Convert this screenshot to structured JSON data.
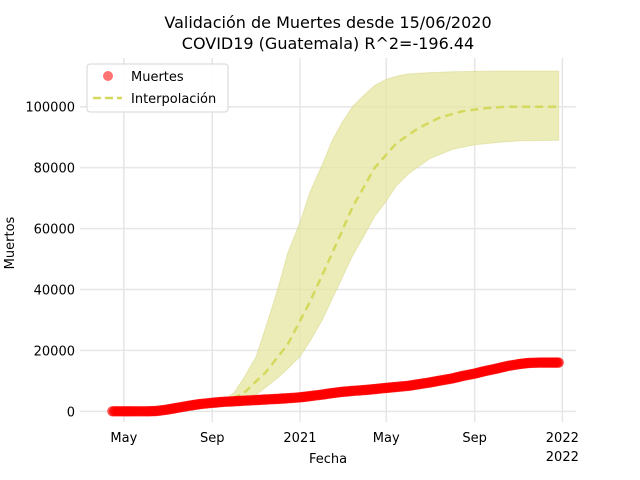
{
  "chart_data": {
    "type": "line",
    "title": "Validación de Muertes desde 15/06/2020",
    "subtitle": "COVID19 (Guatemala) R^2=-196.44",
    "xlabel": "Fecha",
    "ylabel": "Muertos",
    "x_range": [
      "2020-03-01",
      "2022-01-20"
    ],
    "ylim": [
      -3500,
      116000
    ],
    "x_ticks": [
      {
        "date": "2020-05-01",
        "label": "May",
        "label2": ""
      },
      {
        "date": "2020-09-01",
        "label": "Sep",
        "label2": ""
      },
      {
        "date": "2021-01-01",
        "label": "2021",
        "label2": ""
      },
      {
        "date": "2021-05-01",
        "label": "May",
        "label2": ""
      },
      {
        "date": "2021-09-01",
        "label": "Sep",
        "label2": ""
      },
      {
        "date": "2022-01-01",
        "label": "2022",
        "label2": "2022"
      }
    ],
    "y_ticks": [
      0,
      20000,
      40000,
      60000,
      80000,
      100000
    ],
    "y_tick_labels": [
      "0",
      "20000",
      "40000",
      "60000",
      "80000",
      "100000"
    ],
    "grid": true,
    "legend_position": "upper-left",
    "legend": [
      "Muertes",
      "Interpolación"
    ],
    "colors": {
      "observed": "#ff0000",
      "fit": "#d4d95e",
      "band_fill": "#e6e6a0",
      "band_edge": "#c8c864",
      "grid": "#e6e6e6"
    },
    "series": [
      {
        "name": "Muertes",
        "style": "scatter",
        "points": [
          [
            "2020-04-15",
            0
          ],
          [
            "2020-05-01",
            0
          ],
          [
            "2020-05-15",
            0
          ],
          [
            "2020-06-01",
            0
          ],
          [
            "2020-06-15",
            100
          ],
          [
            "2020-07-01",
            600
          ],
          [
            "2020-07-15",
            1200
          ],
          [
            "2020-08-01",
            1900
          ],
          [
            "2020-08-15",
            2400
          ],
          [
            "2020-09-01",
            2800
          ],
          [
            "2020-09-15",
            3100
          ],
          [
            "2020-10-01",
            3300
          ],
          [
            "2020-10-15",
            3500
          ],
          [
            "2020-11-01",
            3700
          ],
          [
            "2020-11-15",
            3900
          ],
          [
            "2020-12-01",
            4100
          ],
          [
            "2020-12-15",
            4300
          ],
          [
            "2021-01-01",
            4600
          ],
          [
            "2021-01-15",
            5000
          ],
          [
            "2021-02-01",
            5500
          ],
          [
            "2021-02-15",
            6000
          ],
          [
            "2021-03-01",
            6400
          ],
          [
            "2021-03-15",
            6700
          ],
          [
            "2021-04-01",
            7000
          ],
          [
            "2021-04-15",
            7300
          ],
          [
            "2021-05-01",
            7700
          ],
          [
            "2021-05-15",
            8000
          ],
          [
            "2021-06-01",
            8400
          ],
          [
            "2021-06-15",
            8900
          ],
          [
            "2021-07-01",
            9500
          ],
          [
            "2021-07-15",
            10100
          ],
          [
            "2021-08-01",
            10800
          ],
          [
            "2021-08-15",
            11600
          ],
          [
            "2021-09-01",
            12400
          ],
          [
            "2021-09-15",
            13200
          ],
          [
            "2021-10-01",
            14000
          ],
          [
            "2021-10-15",
            14800
          ],
          [
            "2021-11-01",
            15500
          ],
          [
            "2021-11-15",
            15900
          ],
          [
            "2021-12-01",
            16000
          ],
          [
            "2021-12-15",
            16000
          ],
          [
            "2021-12-27",
            16000
          ]
        ]
      },
      {
        "name": "Interpolación",
        "style": "dashed-line",
        "points": [
          [
            "2020-06-15",
            400
          ],
          [
            "2020-07-15",
            700
          ],
          [
            "2020-08-15",
            1300
          ],
          [
            "2020-09-15",
            2600
          ],
          [
            "2020-10-15",
            6000
          ],
          [
            "2020-11-15",
            13000
          ],
          [
            "2020-12-15",
            22000
          ],
          [
            "2021-01-15",
            36000
          ],
          [
            "2021-02-15",
            52000
          ],
          [
            "2021-03-15",
            67000
          ],
          [
            "2021-04-15",
            80000
          ],
          [
            "2021-05-15",
            88000
          ],
          [
            "2021-06-15",
            93000
          ],
          [
            "2021-07-15",
            96500
          ],
          [
            "2021-08-15",
            98500
          ],
          [
            "2021-09-15",
            99500
          ],
          [
            "2021-10-15",
            100000
          ],
          [
            "2021-11-15",
            100000
          ],
          [
            "2021-12-27",
            100000
          ]
        ]
      }
    ],
    "band": {
      "points": [
        [
          "2020-09-01",
          2000,
          1400
        ],
        [
          "2020-09-15",
          3500,
          1800
        ],
        [
          "2020-10-01",
          6000,
          2500
        ],
        [
          "2020-10-15",
          11000,
          4000
        ],
        [
          "2020-11-01",
          18000,
          5500
        ],
        [
          "2020-11-15",
          28000,
          8000
        ],
        [
          "2020-12-01",
          40000,
          11000
        ],
        [
          "2020-12-15",
          52000,
          14000
        ],
        [
          "2021-01-01",
          62000,
          18000
        ],
        [
          "2021-01-15",
          72000,
          23000
        ],
        [
          "2021-02-01",
          81000,
          30000
        ],
        [
          "2021-02-15",
          89000,
          37000
        ],
        [
          "2021-03-01",
          95000,
          44000
        ],
        [
          "2021-03-15",
          100000,
          51000
        ],
        [
          "2021-04-01",
          104000,
          58000
        ],
        [
          "2021-04-15",
          107000,
          64000
        ],
        [
          "2021-05-01",
          109000,
          69000
        ],
        [
          "2021-05-15",
          110000,
          74000
        ],
        [
          "2021-06-01",
          110800,
          78000
        ],
        [
          "2021-07-01",
          111200,
          83000
        ],
        [
          "2021-08-01",
          111500,
          86000
        ],
        [
          "2021-09-01",
          111600,
          87500
        ],
        [
          "2021-10-01",
          111700,
          88200
        ],
        [
          "2021-11-01",
          111700,
          88800
        ],
        [
          "2021-12-27",
          111700,
          89000
        ]
      ]
    }
  }
}
